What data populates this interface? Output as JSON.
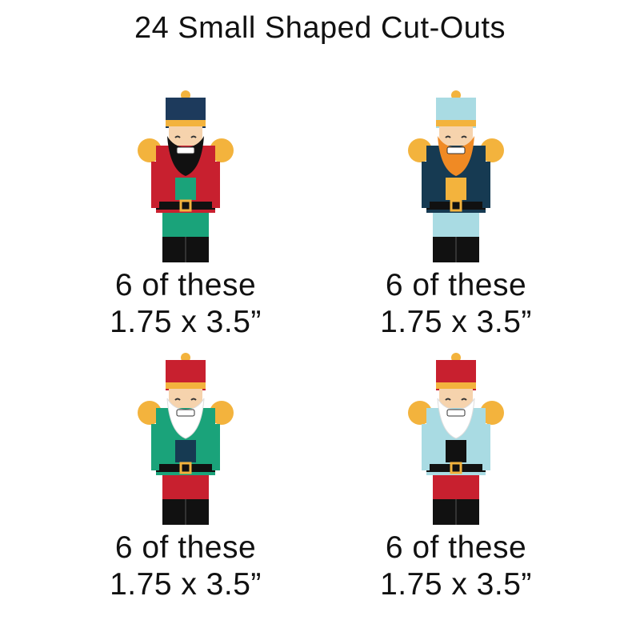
{
  "title": "24 Small Shaped Cut-Outs",
  "items": [
    {
      "qty": "6 of these",
      "size": "1.75 x 3.5”",
      "figure": "nutcracker-king",
      "colors": {
        "hat": "#1d3a5c",
        "crown": "#f3b33d",
        "beard": "#111111",
        "coat": "#c8202f",
        "trim": "#1aa37a",
        "pants": "#1aa37a"
      }
    },
    {
      "qty": "6 of these",
      "size": "1.75 x 3.5”",
      "figure": "nutcracker-ginger-beard",
      "colors": {
        "hat": "#a9dbe3",
        "crown": "#f3b33d",
        "beard": "#f08a24",
        "coat": "#163a52",
        "trim": "#f3b33d",
        "pants": "#a9dbe3"
      }
    },
    {
      "qty": "6 of these",
      "size": "1.75 x 3.5”",
      "figure": "nutcracker-drummer",
      "colors": {
        "hat": "#c8202f",
        "crown": "#f3b33d",
        "beard": "#ffffff",
        "coat": "#1aa37a",
        "trim": "#163a52",
        "pants": "#c8202f"
      }
    },
    {
      "qty": "6 of these",
      "size": "1.75 x 3.5”",
      "figure": "nutcracker-soldier",
      "colors": {
        "hat": "#c8202f",
        "crown": "#f3b33d",
        "beard": "#ffffff",
        "coat": "#a9dbe3",
        "trim": "#111111",
        "pants": "#c8202f"
      }
    }
  ]
}
